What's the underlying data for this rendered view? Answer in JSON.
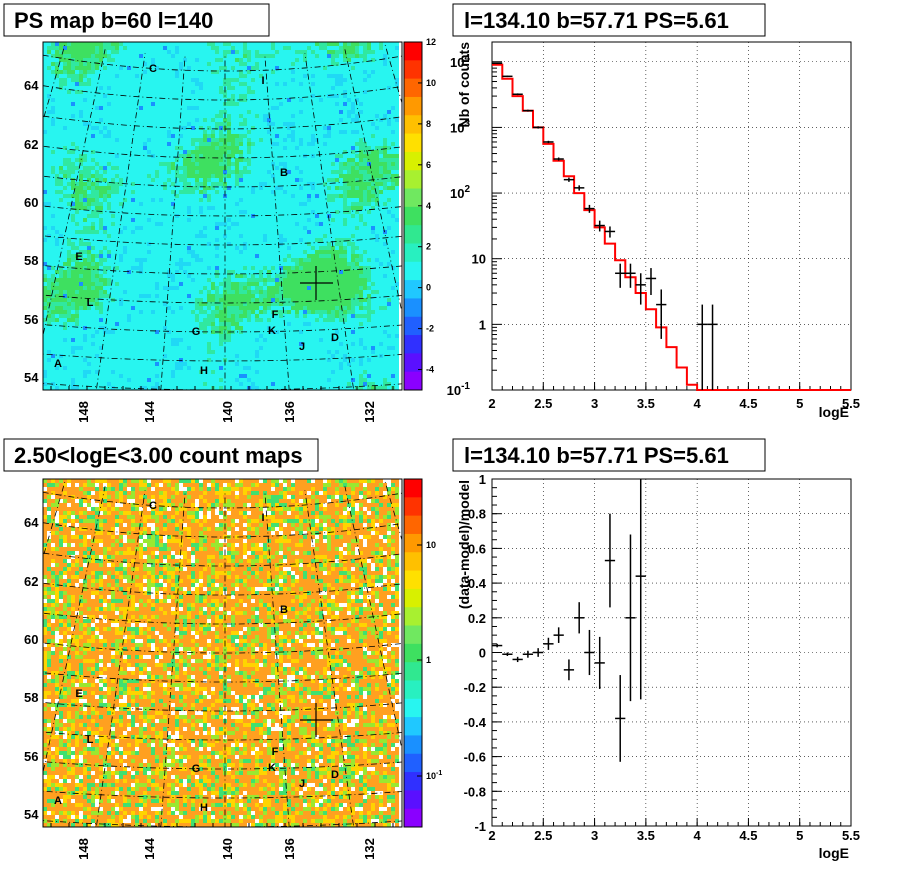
{
  "chart_data": [
    {
      "type": "heatmap",
      "title": "PS map b=60 l=140",
      "x_ticks": [
        "148",
        "144",
        "140",
        "136",
        "132"
      ],
      "y_ticks": [
        "54",
        "56",
        "58",
        "60",
        "62",
        "64"
      ],
      "colorbar_ticks": [
        "-4",
        "-2",
        "0",
        "2",
        "4",
        "6",
        "8",
        "10",
        "12"
      ],
      "zlim": [
        -5,
        12
      ],
      "colors": {
        "background": "#28f5f0",
        "cool": "#28f5f0",
        "warm": "#3ee060",
        "colorbar_top": "#ff0000",
        "colorbar_bottom": "#8a00ff"
      },
      "sources": [
        "A",
        "B",
        "C",
        "D",
        "E",
        "F",
        "G",
        "H",
        "I",
        "J",
        "K",
        "L"
      ],
      "marker": "cross"
    },
    {
      "type": "line",
      "title": "l=134.10 b=57.71 PS=5.61",
      "xlabel": "logE",
      "ylabel": "Nb of counts",
      "xlim": [
        2,
        5.5
      ],
      "ylim": [
        0.1,
        20000
      ],
      "y_scale": "log",
      "grid": true,
      "x_ticks": [
        "2",
        "2.5",
        "3",
        "3.5",
        "4",
        "4.5",
        "5",
        "5.5"
      ],
      "y_ticks": [
        "10^-1",
        "1",
        "10",
        "10^2",
        "10^3",
        "10^4"
      ],
      "series": [
        {
          "style": "step",
          "color": "#ff0000",
          "bins": [
            2.0,
            2.1,
            2.2,
            2.3,
            2.4,
            2.5,
            2.6,
            2.7,
            2.8,
            2.9,
            3.0,
            3.1,
            3.2,
            3.3,
            3.4,
            3.5,
            3.6,
            3.7,
            3.8,
            3.9,
            4.0,
            4.1,
            4.2,
            4.3,
            4.4,
            4.5,
            4.6,
            4.7,
            4.8,
            4.9,
            5.0,
            5.1,
            5.2,
            5.3,
            5.4,
            5.5
          ],
          "values": [
            9000,
            5500,
            3000,
            1800,
            1000,
            560,
            310,
            180,
            100,
            55,
            30,
            17,
            9.5,
            5.2,
            3,
            1.7,
            0.9,
            0.45,
            0.22,
            0.12,
            0.1,
            0.1,
            0.1,
            0.1,
            0.1,
            0.1,
            0.1,
            0.1,
            0.1,
            0.1,
            0.1,
            0.1,
            0.1,
            0.1,
            0.1
          ]
        },
        {
          "style": "errorbar",
          "color": "#000000",
          "points": [
            {
              "x": 2.05,
              "y": 9500,
              "lo": 9300,
              "hi": 9700
            },
            {
              "x": 2.15,
              "y": 6000,
              "lo": 5850,
              "hi": 6150
            },
            {
              "x": 2.25,
              "y": 3200,
              "lo": 3100,
              "hi": 3300
            },
            {
              "x": 2.35,
              "y": 1800,
              "lo": 1740,
              "hi": 1860
            },
            {
              "x": 2.45,
              "y": 1000,
              "lo": 960,
              "hi": 1040
            },
            {
              "x": 2.55,
              "y": 600,
              "lo": 575,
              "hi": 625
            },
            {
              "x": 2.65,
              "y": 330,
              "lo": 312,
              "hi": 348
            },
            {
              "x": 2.75,
              "y": 160,
              "lo": 148,
              "hi": 172
            },
            {
              "x": 2.85,
              "y": 120,
              "lo": 109,
              "hi": 131
            },
            {
              "x": 2.95,
              "y": 58,
              "lo": 50,
              "hi": 66
            },
            {
              "x": 3.05,
              "y": 32,
              "lo": 26,
              "hi": 38
            },
            {
              "x": 3.15,
              "y": 26,
              "lo": 21,
              "hi": 31
            },
            {
              "x": 3.25,
              "y": 6,
              "lo": 3.6,
              "hi": 8.4
            },
            {
              "x": 3.35,
              "y": 6,
              "lo": 3.6,
              "hi": 8.4
            },
            {
              "x": 3.45,
              "y": 4,
              "lo": 2,
              "hi": 6
            },
            {
              "x": 3.55,
              "y": 5,
              "lo": 2.8,
              "hi": 7.2
            },
            {
              "x": 3.65,
              "y": 2,
              "lo": 0.6,
              "hi": 3.4
            },
            {
              "x": 4.05,
              "y": 1,
              "lo": 0.1,
              "hi": 2
            },
            {
              "x": 4.15,
              "y": 1,
              "lo": 0.1,
              "hi": 2
            }
          ]
        }
      ]
    },
    {
      "type": "heatmap",
      "title": "2.50<logE<3.00 count maps",
      "x_ticks": [
        "148",
        "144",
        "140",
        "136",
        "132"
      ],
      "y_ticks": [
        "54",
        "56",
        "58",
        "60",
        "62",
        "64"
      ],
      "colorbar_ticks": [
        "10",
        "1",
        "10^-1"
      ],
      "colors": {
        "background": "#ffa020",
        "low": "#ffffff",
        "mid": "#3ee060",
        "high": "#ff2000"
      },
      "z_scale": "log",
      "sources": [
        "A",
        "B",
        "C",
        "D",
        "E",
        "F",
        "G",
        "H",
        "I",
        "J",
        "K",
        "L"
      ],
      "marker": "cross"
    },
    {
      "type": "scatter",
      "title": "l=134.10 b=57.71 PS=5.61",
      "xlabel": "logE",
      "ylabel": "(data-model)/model",
      "xlim": [
        2,
        5.5
      ],
      "ylim": [
        -1,
        1
      ],
      "grid": true,
      "x_ticks": [
        "2",
        "2.5",
        "3",
        "3.5",
        "4",
        "4.5",
        "5",
        "5.5"
      ],
      "y_ticks": [
        "-1",
        "-0.8",
        "-0.6",
        "-0.4",
        "-0.2",
        "0",
        "0.2",
        "0.4",
        "0.6",
        "0.8",
        "1"
      ],
      "series": [
        {
          "style": "errorbar",
          "color": "#000000",
          "points": [
            {
              "x": 2.05,
              "y": 0.04,
              "err": 0.01
            },
            {
              "x": 2.15,
              "y": -0.01,
              "err": 0.01
            },
            {
              "x": 2.25,
              "y": -0.04,
              "err": 0.015
            },
            {
              "x": 2.35,
              "y": -0.01,
              "err": 0.02
            },
            {
              "x": 2.45,
              "y": 0.0,
              "err": 0.025
            },
            {
              "x": 2.55,
              "y": 0.05,
              "err": 0.035
            },
            {
              "x": 2.65,
              "y": 0.1,
              "err": 0.045
            },
            {
              "x": 2.75,
              "y": -0.1,
              "err": 0.06
            },
            {
              "x": 2.85,
              "y": 0.2,
              "err": 0.09
            },
            {
              "x": 2.95,
              "y": 0.0,
              "err": 0.13
            },
            {
              "x": 3.05,
              "y": -0.06,
              "err": 0.15
            },
            {
              "x": 3.15,
              "y": 0.53,
              "err": 0.27
            },
            {
              "x": 3.25,
              "y": -0.38,
              "err": 0.25
            },
            {
              "x": 3.35,
              "y": 0.2,
              "err": 0.48
            },
            {
              "x": 3.45,
              "y": 0.44,
              "err": 0.71
            }
          ]
        }
      ]
    }
  ]
}
